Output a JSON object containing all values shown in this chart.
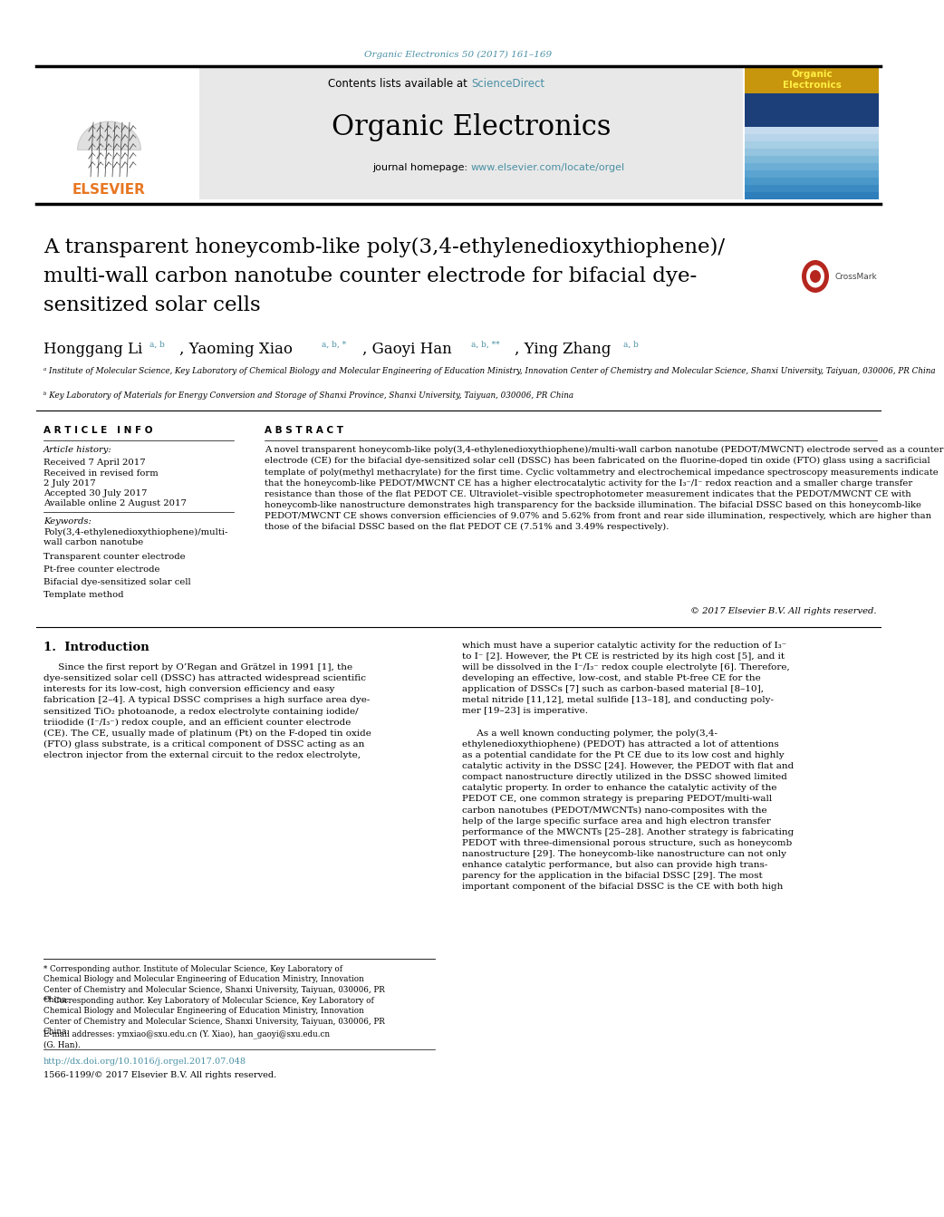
{
  "journal_ref": "Organic Electronics 50 (2017) 161–169",
  "journal_ref_color": "#4a90a4",
  "journal_name": "Organic Electronics",
  "contents_text": "Contents lists available at ",
  "sciencedirect_text": "ScienceDirect",
  "sciencedirect_color": "#4a90a4",
  "homepage_text": "journal homepage: ",
  "homepage_url": "www.elsevier.com/locate/orgel",
  "homepage_color": "#4a90a4",
  "affil_a": "ᵃ Institute of Molecular Science, Key Laboratory of Chemical Biology and Molecular Engineering of Education Ministry, Innovation Center of Chemistry and Molecular Science, Shanxi University, Taiyuan, 030006, PR China",
  "affil_b": "ᵇ Key Laboratory of Materials for Energy Conversion and Storage of Shanxi Province, Shanxi University, Taiyuan, 030006, PR China",
  "article_info_title": "A R T I C L E   I N F O",
  "article_history_label": "Article history:",
  "received1": "Received 7 April 2017",
  "received2": "Received in revised form",
  "date2": "2 July 2017",
  "accepted": "Accepted 30 July 2017",
  "available": "Available online 2 August 2017",
  "keywords_label": "Keywords:",
  "keywords": [
    "Poly(3,4-ethylenedioxythiophene)/multi-\nwall carbon nanotube",
    "Transparent counter electrode",
    "Pt-free counter electrode",
    "Bifacial dye-sensitized solar cell",
    "Template method"
  ],
  "abstract_title": "A B S T R A C T",
  "abstract_text": "A novel transparent honeycomb-like poly(3,4-ethylenedioxythiophene)/multi-wall carbon nanotube (PEDOT/MWCNT) electrode served as a counter electrode (CE) for the bifacial dye-sensitized solar cell (DSSC) has been fabricated on the fluorine-doped tin oxide (FTO) glass using a sacrificial template of poly(methyl methacrylate) for the first time. Cyclic voltammetry and electrochemical impedance spectroscopy measurements indicate that the honeycomb-like PEDOT/MWCNT CE has a higher electrocatalytic activity for the I₃⁻/I⁻ redox reaction and a smaller charge transfer resistance than those of the flat PEDOT CE. Ultraviolet–visible spectrophotometer measurement indicates that the PEDOT/MWCNT CE with honeycomb-like nanostructure demonstrates high transparency for the backside illumination. The bifacial DSSC based on this honeycomb-like PEDOT/MWCNT CE shows conversion efficiencies of 9.07% and 5.62% from front and rear side illumination, respectively, which are higher than those of the bifacial DSSC based on the flat PEDOT CE (7.51% and 3.49% respectively).",
  "copyright_text": "© 2017 Elsevier B.V. All rights reserved.",
  "intro_title": "1.  Introduction",
  "intro_col1": "     Since the first report by O’Regan and Grätzel in 1991 [1], the\ndye-sensitized solar cell (DSSC) has attracted widespread scientific\ninterests for its low-cost, high conversion efficiency and easy\nfabrication [2–4]. A typical DSSC comprises a high surface area dye-\nsensitized TiO₂ photoanode, a redox electrolyte containing iodide/\ntriiodide (I⁻/I₃⁻) redox couple, and an efficient counter electrode\n(CE). The CE, usually made of platinum (Pt) on the F-doped tin oxide\n(FTO) glass substrate, is a critical component of DSSC acting as an\nelectron injector from the external circuit to the redox electrolyte,",
  "intro_col2": "which must have a superior catalytic activity for the reduction of I₃⁻\nto I⁻ [2]. However, the Pt CE is restricted by its high cost [5], and it\nwill be dissolved in the I⁻/I₃⁻ redox couple electrolyte [6]. Therefore,\ndeveloping an effective, low-cost, and stable Pt-free CE for the\napplication of DSSCs [7] such as carbon-based material [8–10],\nmetal nitride [11,12], metal sulfide [13–18], and conducting poly-\nmer [19–23] is imperative.\n\n     As a well known conducting polymer, the poly(3,4-\nethylenedioxythiophene) (PEDOT) has attracted a lot of attentions\nas a potential candidate for the Pt CE due to its low cost and highly\ncatalytic activity in the DSSC [24]. However, the PEDOT with flat and\ncompact nanostructure directly utilized in the DSSC showed limited\ncatalytic property. In order to enhance the catalytic activity of the\nPEDOT CE, one common strategy is preparing PEDOT/multi-wall\ncarbon nanotubes (PEDOT/MWCNTs) nano-composites with the\nhelp of the large specific surface area and high electron transfer\nperformance of the MWCNTs [25–28]. Another strategy is fabricating\nPEDOT with three-dimensional porous structure, such as honeycomb\nnanostructure [29]. The honeycomb-like nanostructure can not only\nenhance catalytic performance, but also can provide high trans-\nparency for the application in the bifacial DSSC [29]. The most\nimportant component of the bifacial DSSC is the CE with both high",
  "footnote_star": "* Corresponding author. Institute of Molecular Science, Key Laboratory of\nChemical Biology and Molecular Engineering of Education Ministry, Innovation\nCenter of Chemistry and Molecular Science, Shanxi University, Taiyuan, 030006, PR\nChina.",
  "footnote_dstar": "** Corresponding author. Key Laboratory of Molecular Science, Key Laboratory of\nChemical Biology and Molecular Engineering of Education Ministry, Innovation\nCenter of Chemistry and Molecular Science, Shanxi University, Taiyuan, 030006, PR\nChina.",
  "footnote_email": "E-mail addresses: ymxiao@sxu.edu.cn (Y. Xiao), han_gaoyi@sxu.edu.cn\n(G. Han).",
  "doi_text": "http://dx.doi.org/10.1016/j.orgel.2017.07.048",
  "issn_text": "1566-1199/© 2017 Elsevier B.V. All rights reserved.",
  "bg_color": "#ffffff",
  "header_bg": "#e8e8e8",
  "elsevier_orange": "#e87722",
  "link_blue": "#4a90a4"
}
